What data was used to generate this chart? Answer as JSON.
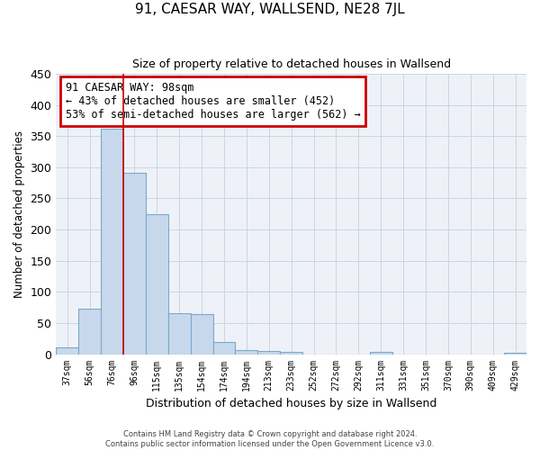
{
  "title": "91, CAESAR WAY, WALLSEND, NE28 7JL",
  "subtitle": "Size of property relative to detached houses in Wallsend",
  "xlabel": "Distribution of detached houses by size in Wallsend",
  "ylabel": "Number of detached properties",
  "bar_color": "#c8d8ec",
  "bar_edge_color": "#7aaac8",
  "categories": [
    "37sqm",
    "56sqm",
    "76sqm",
    "96sqm",
    "115sqm",
    "135sqm",
    "154sqm",
    "174sqm",
    "194sqm",
    "213sqm",
    "233sqm",
    "252sqm",
    "272sqm",
    "292sqm",
    "311sqm",
    "331sqm",
    "351sqm",
    "370sqm",
    "390sqm",
    "409sqm",
    "429sqm"
  ],
  "values": [
    11,
    73,
    362,
    291,
    225,
    66,
    65,
    20,
    6,
    5,
    4,
    0,
    0,
    0,
    3,
    0,
    0,
    0,
    0,
    0,
    2
  ],
  "ylim": [
    0,
    450
  ],
  "yticks": [
    0,
    50,
    100,
    150,
    200,
    250,
    300,
    350,
    400,
    450
  ],
  "property_line_x": 2.5,
  "annotation_text": "91 CAESAR WAY: 98sqm\n← 43% of detached houses are smaller (452)\n53% of semi-detached houses are larger (562) →",
  "annotation_box_color": "white",
  "annotation_box_edge_color": "#cc0000",
  "vline_color": "#cc0000",
  "footer_text": "Contains HM Land Registry data © Crown copyright and database right 2024.\nContains public sector information licensed under the Open Government Licence v3.0.",
  "grid_color": "#ccd5e0",
  "background_color": "#eef2f8"
}
